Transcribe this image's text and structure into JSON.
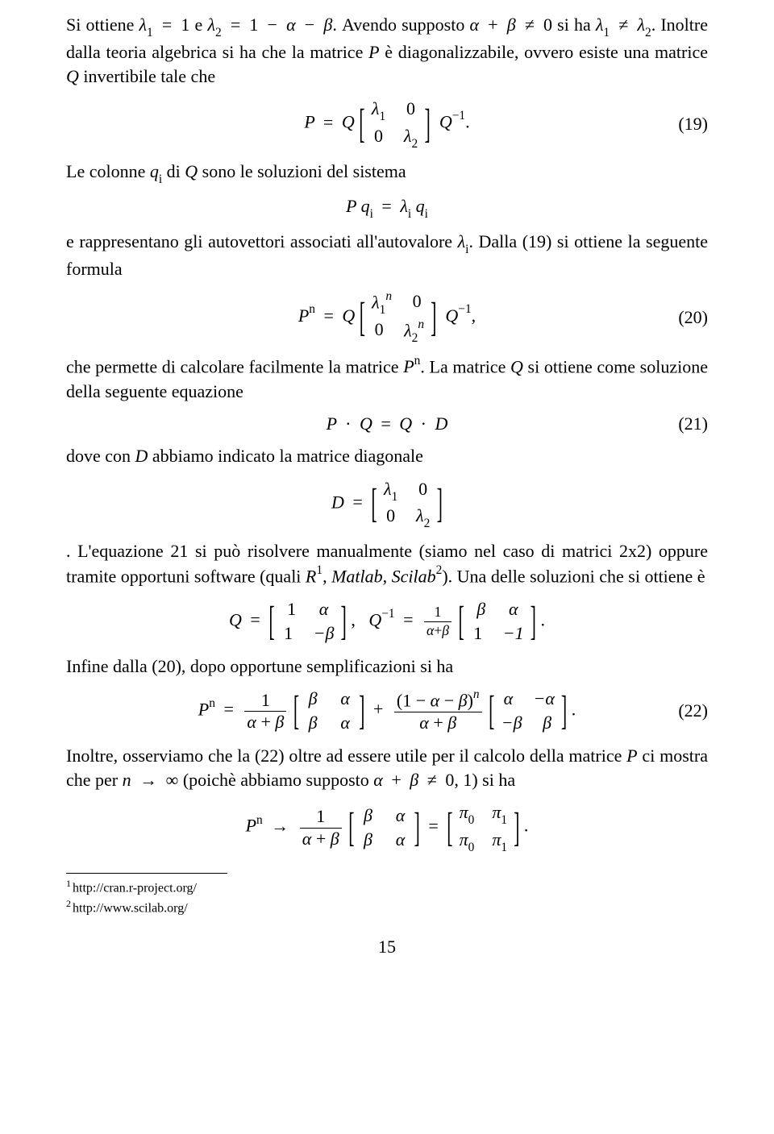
{
  "page_number": "15",
  "eq_numbers": {
    "e19": "(19)",
    "e20": "(20)",
    "e21": "(21)",
    "e22": "(22)"
  },
  "para1_a": "Si ottiene ",
  "para1_b": " e ",
  "para1_c": ". Avendo supposto ",
  "para1_d": " si ha ",
  "para1_e": ". Inoltre dalla teoria algebrica si ha che la matrice ",
  "para1_f": " è diagonalizzabile, ovvero esiste una matrice ",
  "para1_g": " invertibile tale che",
  "para2_a": "Le colonne ",
  "para2_b": " di ",
  "para2_c": " sono le soluzioni del sistema",
  "para3_a": "e rappresentano gli autovettori associati all'autovalore ",
  "para3_b": ". Dalla (19) si ottiene la seguente formula",
  "para4_a": "che permette di calcolare facilmente la matrice ",
  "para4_b": ". La matrice ",
  "para4_c": " si ottiene come soluzione della seguente equazione",
  "para5": "dove con ",
  "para5b": " abbiamo indicato la matrice diagonale",
  "para6_a": ". L'equazione 21 si può risolvere manualmente (siamo nel caso di matrici ",
  "para6_b": ") oppure tramite opportuni software (quali ",
  "para6_c": ", ",
  "para6_d": ", ",
  "para6_e": "). Una delle soluzioni che si ottiene è",
  "softR": "R",
  "softM": "Matlab",
  "softS": "Scilab",
  "sup1": "1",
  "sup2": "2",
  "twobytwo": "2x2",
  "para7": "Infine dalla (20), dopo opportune semplificazioni si ha",
  "para8_a": "Inoltre, osserviamo che la (22) oltre ad essere utile per il calcolo della matrice ",
  "para8_b": " ci mostra che per ",
  "para8_c": " (poichè abbiamo supposto ",
  "para8_d": ") si ha",
  "footnotes": {
    "f1": "http://cran.r-project.org/",
    "f2": "http://www.scilab.org/"
  },
  "sym": {
    "lambda1eq": "λ",
    "lambda2eq": "λ",
    "lambda1ne": "λ",
    "P": "P",
    "Q": "Q",
    "D": "D",
    "q": "q",
    "i": "i",
    "n": "n",
    "alpha": "α",
    "beta": "β",
    "pi": "π",
    "eq": "=",
    "ne": "≠",
    "plus": "+",
    "minus": "−",
    "to": "→",
    "inf": "∞",
    "cdot": "·",
    "zero": "0",
    "one": "1",
    "arr": "→",
    "comma": ",",
    "period": "."
  },
  "bracket_scale": {
    "sm": "2.3",
    "md": "2.3"
  },
  "colors": {
    "text": "#000000"
  }
}
